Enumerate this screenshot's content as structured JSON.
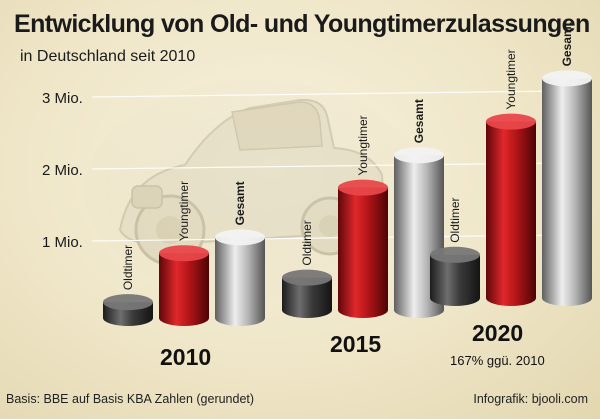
{
  "header": {
    "title": "Entwicklung von Old- und Youngtimerzulassungen",
    "subtitle": "in Deutschland seit 2010"
  },
  "footer": {
    "source": "Basis: BBE auf Basis KBA Zahlen (gerundet)",
    "credit": "Infografik: bjooli.com"
  },
  "colors": {
    "oldtimer": "#4a4a4a",
    "youngtimer": "#c0191c",
    "gesamt": "#b5b5b5"
  },
  "chart_data": {
    "type": "bar",
    "title": "Entwicklung von Old- und Youngtimerzulassungen",
    "subtitle": "in Deutschland seit 2010",
    "categories": [
      "2010",
      "2015",
      "2020"
    ],
    "series": [
      {
        "name": "Oldtimer",
        "values": [
          0.22,
          0.45,
          0.6
        ]
      },
      {
        "name": "Youngtimer",
        "values": [
          0.9,
          1.7,
          2.45
        ]
      },
      {
        "name": "Gesamt",
        "values": [
          1.12,
          2.15,
          3.05
        ]
      }
    ],
    "yticks": [
      {
        "value": 1,
        "label": "1 Mio."
      },
      {
        "value": 2,
        "label": "2 Mio."
      },
      {
        "value": 3,
        "label": "3 Mio."
      }
    ],
    "ylim": [
      0,
      3.2
    ],
    "annotations": [
      {
        "category": "2020",
        "text": "167% ggü. 2010"
      }
    ]
  }
}
